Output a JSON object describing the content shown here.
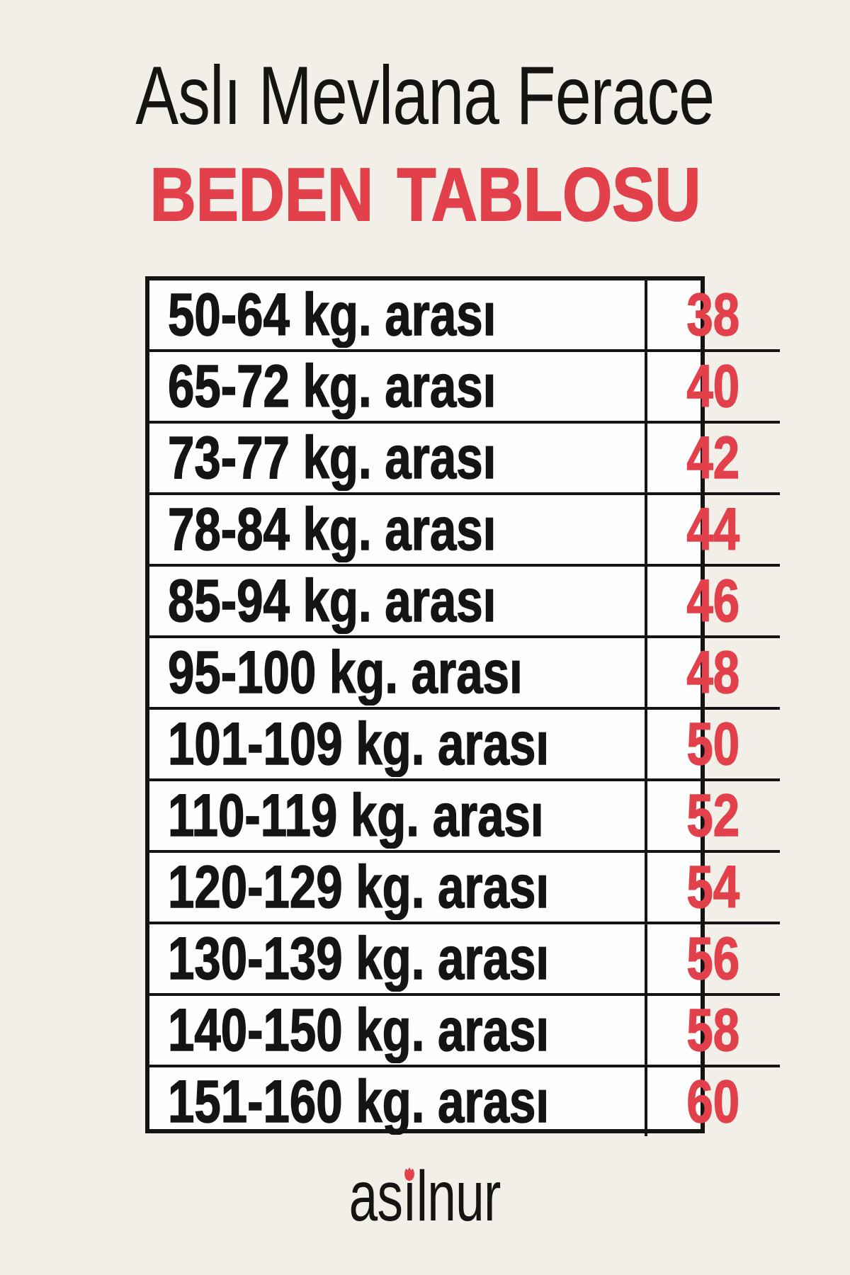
{
  "page": {
    "background_color": "#f2efe8",
    "text_color": "#151413",
    "accent_color": "#e2404a"
  },
  "header": {
    "title": "Aslı Mevlana Ferace",
    "subtitle": "BEDEN TABLOSU"
  },
  "size_table": {
    "border_color": "#151413",
    "cell_background": "#fefefe",
    "size_color": "#e2404a",
    "rows": [
      {
        "weight_range": "50-64 kg. arası",
        "size": "38"
      },
      {
        "weight_range": "65-72 kg. arası",
        "size": "40"
      },
      {
        "weight_range": "73-77 kg. arası",
        "size": "42"
      },
      {
        "weight_range": "78-84 kg. arası",
        "size": "44"
      },
      {
        "weight_range": "85-94 kg. arası",
        "size": "46"
      },
      {
        "weight_range": "95-100 kg. arası",
        "size": "48"
      },
      {
        "weight_range": "101-109 kg. arası",
        "size": "50"
      },
      {
        "weight_range": "110-119 kg. arası",
        "size": "52"
      },
      {
        "weight_range": "120-129 kg. arası",
        "size": "54"
      },
      {
        "weight_range": "130-139 kg. arası",
        "size": "56"
      },
      {
        "weight_range": "140-150 kg. arası",
        "size": "58"
      },
      {
        "weight_range": "151-160 kg. arası",
        "size": "60"
      }
    ]
  },
  "footer": {
    "brand": "asilnur",
    "brand_part1": "as",
    "brand_dotless_i": "ı",
    "brand_part2": "lnur",
    "dot_color": "#e2404a"
  }
}
